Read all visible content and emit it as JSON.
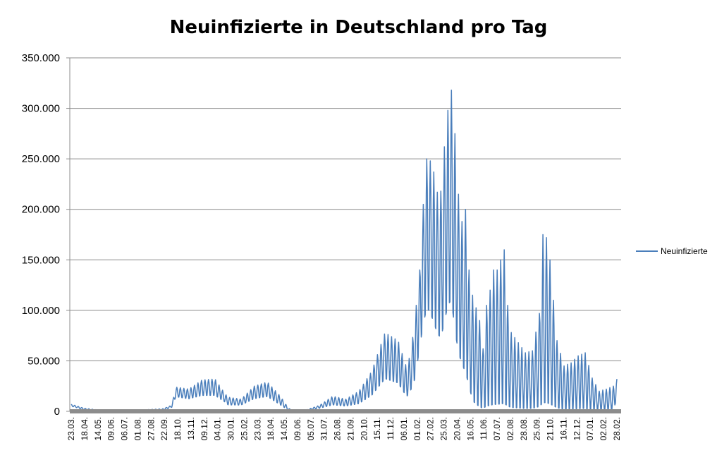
{
  "chart_data": {
    "type": "line",
    "title": "Neuinfizierte in Deutschland pro Tag",
    "xlabel": "",
    "ylabel": "",
    "ylim": [
      0,
      350000
    ],
    "y_ticks": [
      0,
      50000,
      100000,
      150000,
      200000,
      250000,
      300000,
      350000
    ],
    "y_tick_labels": [
      "0",
      "50.000",
      "100.000",
      "150.000",
      "200.000",
      "250.000",
      "300.000",
      "350.000"
    ],
    "x_tick_labels": [
      "23.03.",
      "18.04.",
      "14.05.",
      "09.06.",
      "06.07.",
      "01.08.",
      "27.08.",
      "22.09.",
      "18.10.",
      "13.11.",
      "09.12.",
      "04.01.",
      "30.01.",
      "25.02.",
      "23.03.",
      "18.04.",
      "14.05.",
      "09.06.",
      "05.07.",
      "31.07.",
      "26.08.",
      "21.09.",
      "20.10.",
      "15.11.",
      "11.12.",
      "06.01.",
      "01.02.",
      "27.02.",
      "25.03.",
      "20.04.",
      "16.05.",
      "11.06.",
      "07.07.",
      "02.08.",
      "28.08.",
      "25.09.",
      "21.10.",
      "16.11.",
      "12.12.",
      "07.01.",
      "02.02.",
      "28.02."
    ],
    "grid": true,
    "legend_position": "right",
    "series": [
      {
        "name": "Neuinfizierte",
        "color": "#4a7ebb",
        "peaks": [
          [
            0,
            7000
          ],
          [
            26,
            3000
          ],
          [
            52,
            1500
          ],
          [
            78,
            700
          ],
          [
            104,
            700
          ],
          [
            130,
            1200
          ],
          [
            156,
            1800
          ],
          [
            182,
            2500
          ],
          [
            200,
            6000
          ],
          [
            208,
            24000
          ],
          [
            234,
            22000
          ],
          [
            260,
            31000
          ],
          [
            286,
            32000
          ],
          [
            305,
            18000
          ],
          [
            312,
            14000
          ],
          [
            338,
            12000
          ],
          [
            364,
            25000
          ],
          [
            390,
            29000
          ],
          [
            416,
            15000
          ],
          [
            432,
            3000
          ],
          [
            442,
            1000
          ],
          [
            468,
            1500
          ],
          [
            494,
            6000
          ],
          [
            520,
            15000
          ],
          [
            546,
            12000
          ],
          [
            572,
            20000
          ],
          [
            598,
            40000
          ],
          [
            624,
            78000
          ],
          [
            650,
            70000
          ],
          [
            667,
            43000
          ],
          [
            676,
            60000
          ],
          [
            684,
            95000
          ],
          [
            693,
            140000
          ],
          [
            700,
            205000
          ],
          [
            707,
            250000
          ],
          [
            714,
            248000
          ],
          [
            721,
            237000
          ],
          [
            728,
            217000
          ],
          [
            735,
            218000
          ],
          [
            742,
            262000
          ],
          [
            749,
            298000
          ],
          [
            756,
            318000
          ],
          [
            763,
            275000
          ],
          [
            770,
            215000
          ],
          [
            777,
            188000
          ],
          [
            784,
            200000
          ],
          [
            791,
            140000
          ],
          [
            798,
            115000
          ],
          [
            812,
            90000
          ],
          [
            819,
            62000
          ],
          [
            826,
            105000
          ],
          [
            833,
            120000
          ],
          [
            840,
            140000
          ],
          [
            847,
            140000
          ],
          [
            854,
            150000
          ],
          [
            861,
            160000
          ],
          [
            868,
            105000
          ],
          [
            875,
            78000
          ],
          [
            889,
            68000
          ],
          [
            903,
            58000
          ],
          [
            917,
            60000
          ],
          [
            931,
            97000
          ],
          [
            938,
            175000
          ],
          [
            945,
            172000
          ],
          [
            952,
            150000
          ],
          [
            959,
            110000
          ],
          [
            966,
            70000
          ],
          [
            980,
            45000
          ],
          [
            994,
            48000
          ],
          [
            1008,
            55000
          ],
          [
            1022,
            58000
          ],
          [
            1036,
            33000
          ],
          [
            1050,
            20000
          ],
          [
            1064,
            22000
          ],
          [
            1078,
            25000
          ],
          [
            1085,
            32000
          ]
        ],
        "troughs": [
          [
            0,
            5000
          ],
          [
            26,
            1500
          ],
          [
            52,
            500
          ],
          [
            78,
            300
          ],
          [
            104,
            300
          ],
          [
            130,
            500
          ],
          [
            156,
            800
          ],
          [
            182,
            1000
          ],
          [
            200,
            4000
          ],
          [
            208,
            14000
          ],
          [
            234,
            12000
          ],
          [
            260,
            15000
          ],
          [
            286,
            15000
          ],
          [
            305,
            9000
          ],
          [
            312,
            6000
          ],
          [
            338,
            6000
          ],
          [
            364,
            12000
          ],
          [
            390,
            14000
          ],
          [
            416,
            6000
          ],
          [
            432,
            1000
          ],
          [
            442,
            300
          ],
          [
            468,
            600
          ],
          [
            494,
            3000
          ],
          [
            520,
            6000
          ],
          [
            546,
            5000
          ],
          [
            572,
            7000
          ],
          [
            598,
            15000
          ],
          [
            624,
            30000
          ],
          [
            650,
            26000
          ],
          [
            667,
            13000
          ],
          [
            676,
            20000
          ],
          [
            684,
            30000
          ],
          [
            693,
            60000
          ],
          [
            700,
            80000
          ],
          [
            707,
            95000
          ],
          [
            714,
            90000
          ],
          [
            721,
            80000
          ],
          [
            728,
            70000
          ],
          [
            735,
            65000
          ],
          [
            742,
            80000
          ],
          [
            749,
            95000
          ],
          [
            756,
            100000
          ],
          [
            763,
            70000
          ],
          [
            770,
            50000
          ],
          [
            777,
            40000
          ],
          [
            784,
            30000
          ],
          [
            791,
            20000
          ],
          [
            798,
            5000
          ],
          [
            812,
            0
          ],
          [
            819,
            0
          ],
          [
            826,
            0
          ],
          [
            833,
            0
          ],
          [
            840,
            0
          ],
          [
            847,
            0
          ],
          [
            854,
            0
          ],
          [
            861,
            0
          ],
          [
            868,
            0
          ],
          [
            875,
            0
          ],
          [
            889,
            0
          ],
          [
            903,
            0
          ],
          [
            917,
            0
          ],
          [
            931,
            0
          ],
          [
            938,
            0
          ],
          [
            945,
            0
          ],
          [
            952,
            0
          ],
          [
            959,
            0
          ],
          [
            966,
            0
          ],
          [
            980,
            0
          ],
          [
            994,
            0
          ],
          [
            1008,
            0
          ],
          [
            1022,
            0
          ],
          [
            1036,
            0
          ],
          [
            1050,
            0
          ],
          [
            1064,
            0
          ],
          [
            1078,
            0
          ],
          [
            1085,
            12000
          ]
        ]
      }
    ]
  }
}
